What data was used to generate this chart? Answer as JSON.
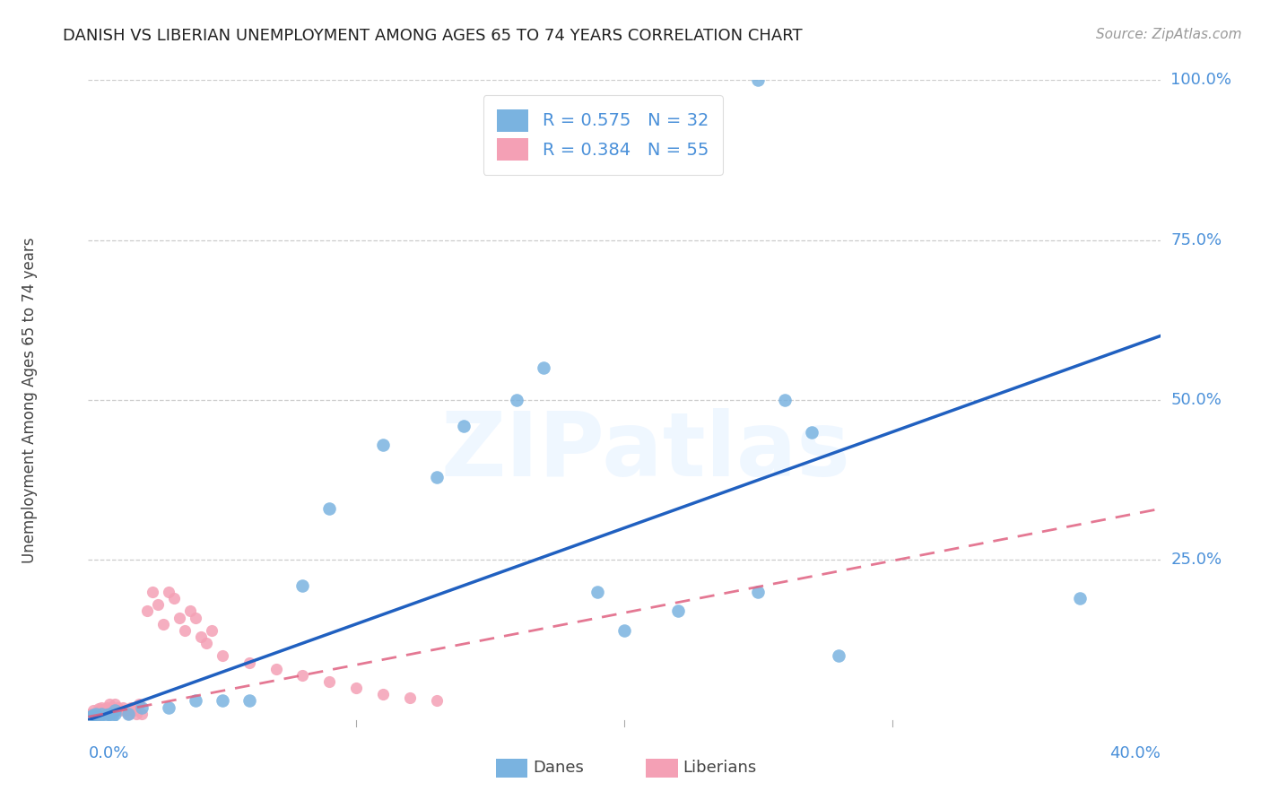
{
  "title": "DANISH VS LIBERIAN UNEMPLOYMENT AMONG AGES 65 TO 74 YEARS CORRELATION CHART",
  "source": "Source: ZipAtlas.com",
  "ylabel_label": "Unemployment Among Ages 65 to 74 years",
  "x_min": 0.0,
  "x_max": 0.4,
  "y_min": 0.0,
  "y_max": 1.0,
  "yticks": [
    0.0,
    0.25,
    0.5,
    0.75,
    1.0
  ],
  "ytick_labels": [
    "",
    "25.0%",
    "50.0%",
    "75.0%",
    "100.0%"
  ],
  "dane_R": 0.575,
  "dane_N": 32,
  "liberian_R": 0.384,
  "liberian_N": 55,
  "dane_color": "#7ab3e0",
  "liberian_color": "#f4a0b5",
  "dane_line_color": "#2060c0",
  "liberian_line_color": "#e06080",
  "title_fontsize": 13,
  "tick_color": "#4a90d9",
  "grid_color": "#cccccc",
  "watermark_text": "ZIPatlas",
  "danes_x": [
    0.001,
    0.002,
    0.003,
    0.004,
    0.005,
    0.007,
    0.008,
    0.009,
    0.01,
    0.01,
    0.015,
    0.02,
    0.03,
    0.04,
    0.05,
    0.06,
    0.08,
    0.09,
    0.11,
    0.13,
    0.14,
    0.16,
    0.17,
    0.19,
    0.2,
    0.22,
    0.25,
    0.26,
    0.27,
    0.28,
    0.37,
    0.25
  ],
  "danes_y": [
    0.005,
    0.008,
    0.01,
    0.005,
    0.01,
    0.008,
    0.01,
    0.005,
    0.015,
    0.01,
    0.01,
    0.02,
    0.02,
    0.03,
    0.03,
    0.03,
    0.21,
    0.33,
    0.43,
    0.38,
    0.46,
    0.5,
    0.55,
    0.2,
    0.14,
    0.17,
    0.2,
    0.5,
    0.45,
    0.1,
    0.19,
    1.0
  ],
  "liberians_x": [
    0.001,
    0.001,
    0.002,
    0.002,
    0.003,
    0.003,
    0.004,
    0.004,
    0.005,
    0.005,
    0.006,
    0.006,
    0.007,
    0.007,
    0.008,
    0.008,
    0.009,
    0.009,
    0.01,
    0.01,
    0.011,
    0.012,
    0.013,
    0.014,
    0.015,
    0.016,
    0.017,
    0.018,
    0.019,
    0.02,
    0.022,
    0.024,
    0.026,
    0.028,
    0.03,
    0.032,
    0.034,
    0.036,
    0.038,
    0.04,
    0.042,
    0.044,
    0.046,
    0.05,
    0.06,
    0.07,
    0.08,
    0.09,
    0.1,
    0.11,
    0.12,
    0.13,
    0.001,
    0.002,
    0.003
  ],
  "liberians_y": [
    0.005,
    0.01,
    0.008,
    0.015,
    0.01,
    0.005,
    0.012,
    0.018,
    0.015,
    0.02,
    0.01,
    0.015,
    0.02,
    0.01,
    0.015,
    0.025,
    0.01,
    0.02,
    0.025,
    0.015,
    0.02,
    0.015,
    0.02,
    0.015,
    0.01,
    0.02,
    0.015,
    0.01,
    0.025,
    0.01,
    0.17,
    0.2,
    0.18,
    0.15,
    0.2,
    0.19,
    0.16,
    0.14,
    0.17,
    0.16,
    0.13,
    0.12,
    0.14,
    0.1,
    0.09,
    0.08,
    0.07,
    0.06,
    0.05,
    0.04,
    0.035,
    0.03,
    0.005,
    0.005,
    0.005
  ],
  "dane_trend_x0": 0.0,
  "dane_trend_y0": 0.0,
  "dane_trend_x1": 0.4,
  "dane_trend_y1": 0.6,
  "lib_trend_x0": 0.0,
  "lib_trend_y0": 0.005,
  "lib_trend_x1": 0.4,
  "lib_trend_y1": 0.33
}
